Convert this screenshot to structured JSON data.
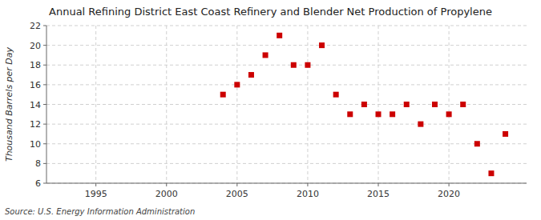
{
  "chart_data": {
    "type": "scatter",
    "title": "Annual Refining District East Coast Refinery and Blender Net Production of Propylene",
    "y_label": "Thousand Barrels per Day",
    "annotations": [
      "Source: U.S. Energy Information Administration"
    ],
    "x": [
      2004,
      2005,
      2006,
      2007,
      2008,
      2009,
      2010,
      2011,
      2012,
      2013,
      2014,
      2015,
      2016,
      2017,
      2018,
      2019,
      2020,
      2021,
      2022,
      2023,
      2024
    ],
    "values": [
      15.0,
      16.0,
      17.0,
      19.0,
      21.0,
      18.0,
      18.0,
      20.0,
      15.0,
      13.0,
      14.0,
      13.0,
      13.0,
      14.0,
      12.0,
      14.0,
      13.0,
      14.0,
      10.0,
      7.0,
      11.0
    ],
    "color": "#cc0000",
    "marker": "square",
    "xlim": [
      1991.5,
      2025.5
    ],
    "ylim": [
      6,
      22
    ],
    "xticks": [
      1995,
      2000,
      2005,
      2010,
      2015,
      2020
    ],
    "yticks": [
      6,
      8,
      10,
      12,
      14,
      16,
      18,
      20,
      22
    ],
    "grid": true
  }
}
